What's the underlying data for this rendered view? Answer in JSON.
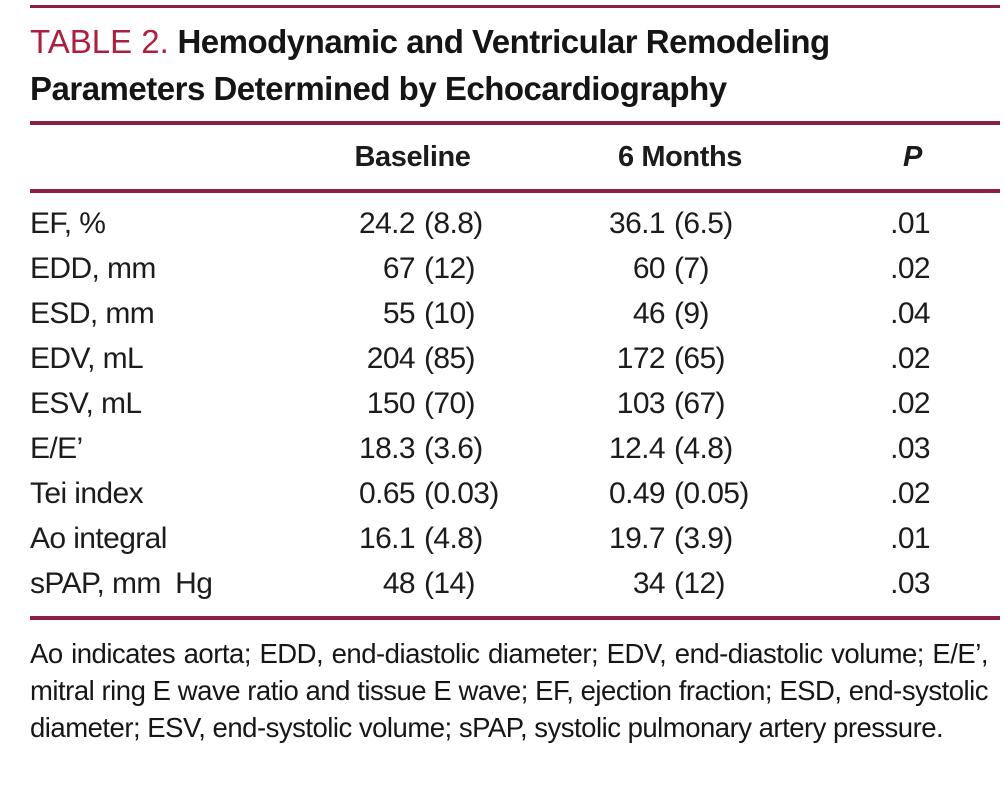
{
  "title": {
    "label": "TABLE 2.",
    "text": "Hemodynamic and Ventricular Remodeling Parameters Determined by Echocardiography"
  },
  "table": {
    "columns": {
      "baseline": "Baseline",
      "months": "6 Months",
      "p": "P"
    },
    "rows": [
      {
        "label": "EF, %",
        "baseline_v": "24.2",
        "baseline_sd": "(8.8)",
        "months_v": "36.1",
        "months_sd": "(6.5)",
        "p": ".01"
      },
      {
        "label": "EDD, mm",
        "baseline_v": "67",
        "baseline_sd": "(12)",
        "months_v": "60",
        "months_sd": "(7)",
        "p": ".02"
      },
      {
        "label": "ESD, mm",
        "baseline_v": "55",
        "baseline_sd": "(10)",
        "months_v": "46",
        "months_sd": "(9)",
        "p": ".04"
      },
      {
        "label": "EDV, mL",
        "baseline_v": "204",
        "baseline_sd": "(85)",
        "months_v": "172",
        "months_sd": "(65)",
        "p": ".02"
      },
      {
        "label": "ESV, mL",
        "baseline_v": "150",
        "baseline_sd": "(70)",
        "months_v": "103",
        "months_sd": "(67)",
        "p": ".02"
      },
      {
        "label": "E/E’",
        "baseline_v": "18.3",
        "baseline_sd": "(3.6)",
        "months_v": "12.4",
        "months_sd": "(4.8)",
        "p": ".03"
      },
      {
        "label": "Tei index",
        "baseline_v": "0.65",
        "baseline_sd": "(0.03)",
        "months_v": "0.49",
        "months_sd": "(0.05)",
        "p": ".02"
      },
      {
        "label": "Ao integral",
        "baseline_v": "16.1",
        "baseline_sd": "(4.8)",
        "months_v": "19.7",
        "months_sd": "(3.9)",
        "p": ".01"
      },
      {
        "label": "sPAP, mm Hg",
        "baseline_v": "48",
        "baseline_sd": "(14)",
        "months_v": "34",
        "months_sd": "(12)",
        "p": ".03"
      }
    ]
  },
  "footnote": "Ao indicates aorta; EDD, end-diastolic diameter; EDV, end-diastolic volume; E/E’, mitral ring E wave ratio and tissue E wave; EF, ejection fraction; ESD, end-systolic diameter; ESV, end-systolic volume; sPAP, systolic pulmonary artery pressure.",
  "colors": {
    "accent_red": "#b01e3e",
    "rule_red": "#8c2041",
    "text": "#1c1c1c"
  }
}
